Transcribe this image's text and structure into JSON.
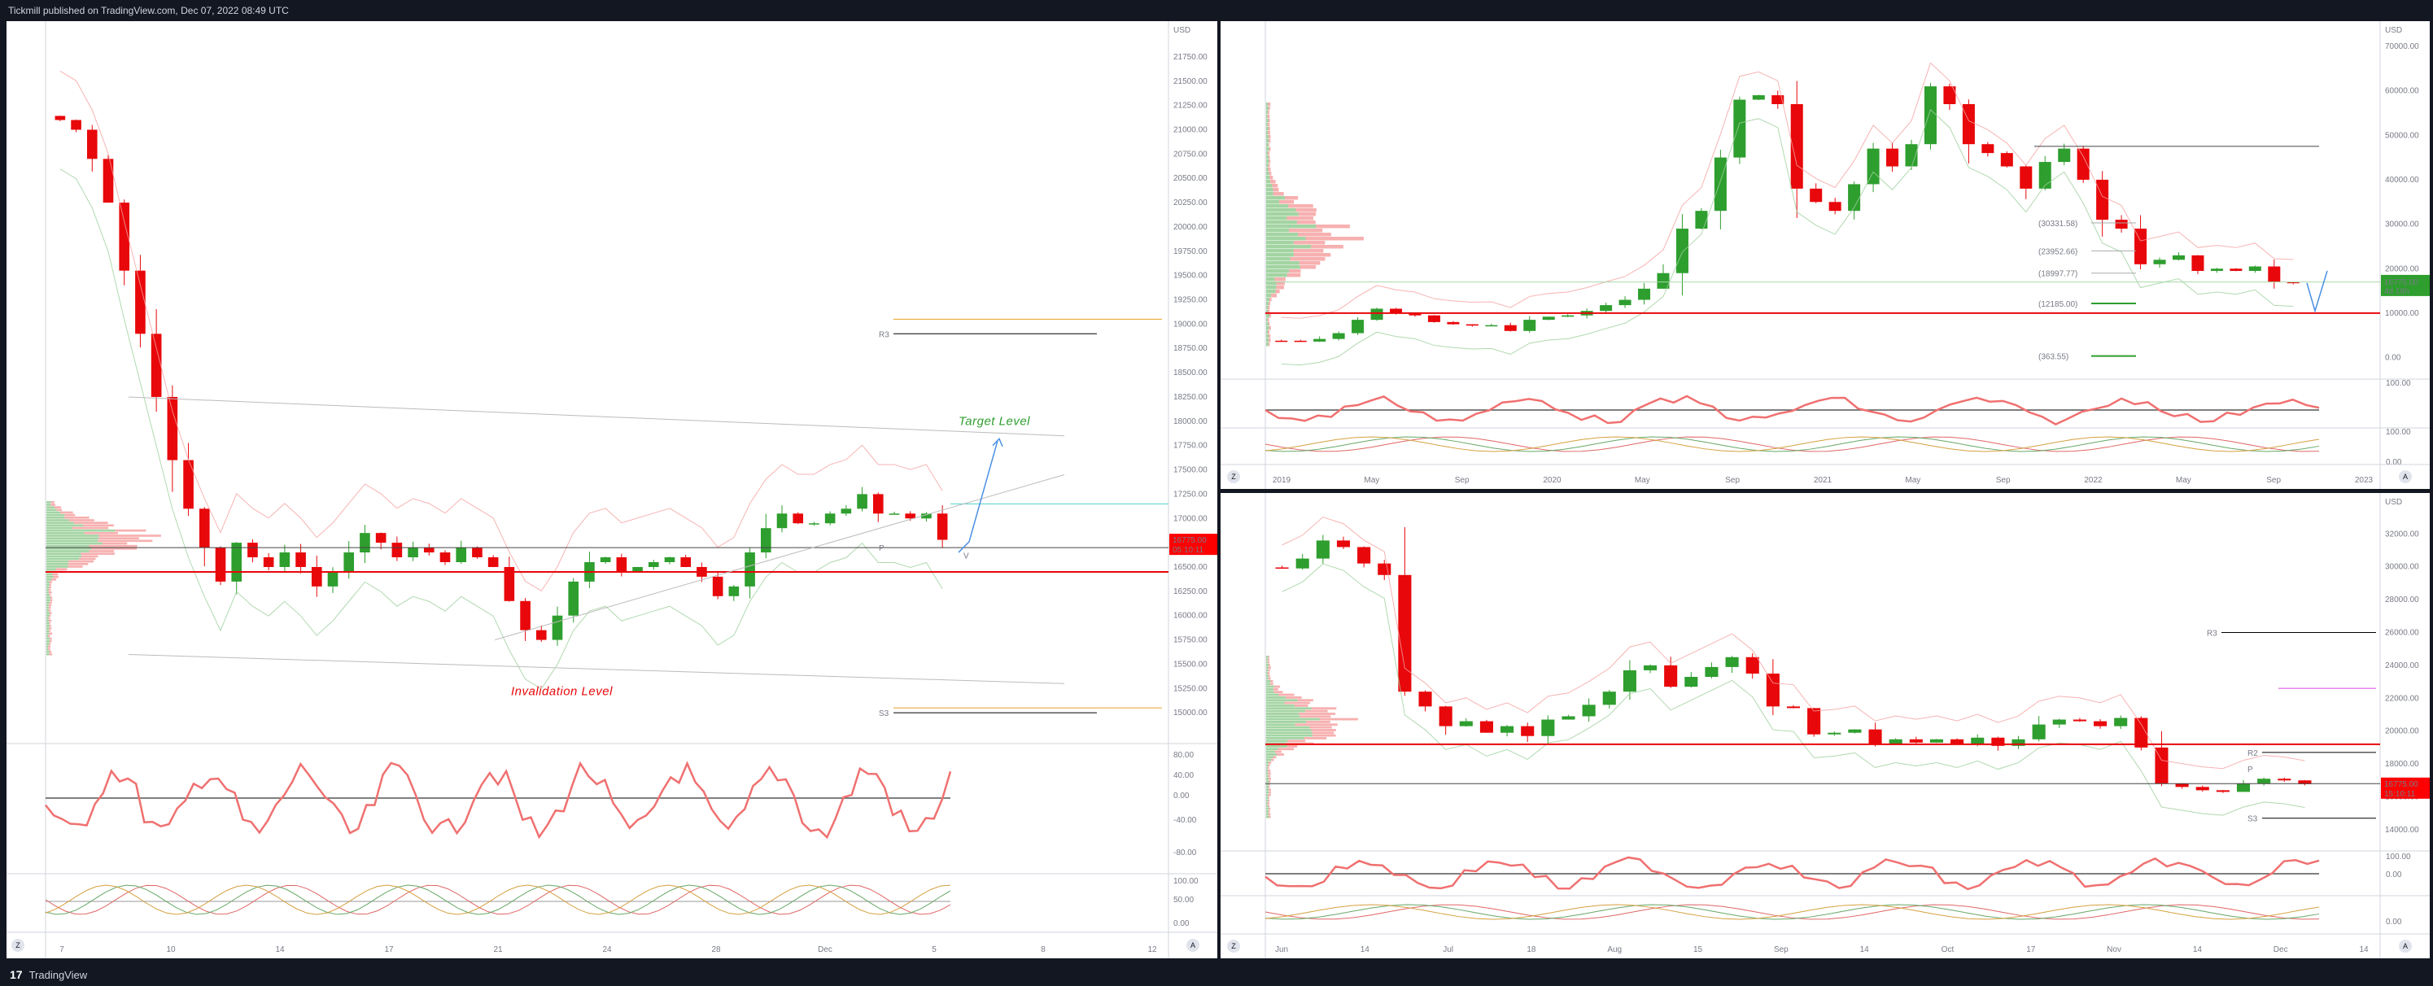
{
  "header": {
    "publish_line": "Tickmill published on TradingView.com, Dec 07, 2022 08:49 UTC"
  },
  "footer": {
    "brand": "TradingView",
    "logo_glyph": "17"
  },
  "colors": {
    "up": "#2e9e2e",
    "down": "#e8070a",
    "osc_up": "#6fbf6f",
    "osc_down": "#f07070",
    "target": "#2e9e2e",
    "invalidation": "#e8070a",
    "price_badge": "#ff0000"
  },
  "chart_data": [
    {
      "id": "left",
      "type": "candlestick",
      "currency": "USD",
      "y_ticks": [
        "21750.00",
        "21500.00",
        "21250.00",
        "21000.00",
        "20750.00",
        "20500.00",
        "20250.00",
        "20000.00",
        "19750.00",
        "19500.00",
        "19250.00",
        "19000.00",
        "18750.00",
        "18500.00",
        "18250.00",
        "18000.00",
        "17750.00",
        "17500.00",
        "17250.00",
        "17000.00",
        "16750.00",
        "16500.00",
        "16250.00",
        "16000.00",
        "15750.00",
        "15500.00",
        "15250.00",
        "15000.00"
      ],
      "ylim": [
        14750,
        21950
      ],
      "x_ticks": [
        "7",
        "10",
        "14",
        "17",
        "21",
        "24",
        "28",
        "Dec",
        "5",
        "8",
        "12"
      ],
      "close_path_values": [
        21100,
        21000,
        20700,
        20250,
        19550,
        18900,
        18250,
        17600,
        17100,
        16700,
        16350,
        16750,
        16600,
        16500,
        16650,
        16500,
        16300,
        16450,
        16650,
        16850,
        16750,
        16600,
        16700,
        16650,
        16550,
        16700,
        16600,
        16500,
        16150,
        15850,
        15750,
        16000,
        16350,
        16550,
        16600,
        16450,
        16500,
        16550,
        16600,
        16500,
        16400,
        16200,
        16300,
        16650,
        16900,
        17050,
        16950,
        16950,
        17050,
        17100,
        17250,
        17050,
        17050,
        17000,
        17050,
        16780
      ],
      "current_price": "16775.00",
      "countdown": "05:10:11",
      "pivots": {
        "R3": "R3",
        "P": "P",
        "S3": "S3"
      },
      "annotations": {
        "target": "Target Level",
        "invalidation": "Invalidation Level",
        "projection_marker": "V"
      },
      "oscillator1": {
        "ticks": [
          "80.00",
          "40.00",
          "0.00",
          "-40.00",
          "-80.00"
        ]
      },
      "oscillator2": {
        "ticks": [
          "100.00",
          "50.00",
          "0.00"
        ]
      }
    },
    {
      "id": "top-right",
      "type": "candlestick",
      "currency": "USD",
      "y_ticks": [
        "70000.00",
        "60000.00",
        "50000.00",
        "40000.00",
        "30000.00",
        "20000.00",
        "10000.00",
        "0.00"
      ],
      "ylim": [
        -3000,
        72000
      ],
      "x_ticks": [
        "2019",
        "May",
        "Sep",
        "2020",
        "May",
        "Sep",
        "2021",
        "May",
        "Sep",
        "2022",
        "May",
        "Sep",
        "2023"
      ],
      "close_path_values": [
        3800,
        3600,
        4200,
        5500,
        8500,
        11000,
        10000,
        9500,
        8000,
        7500,
        7200,
        7300,
        6000,
        8500,
        9200,
        9500,
        10500,
        11800,
        13000,
        15500,
        19000,
        29000,
        33000,
        45000,
        58000,
        59000,
        57000,
        38000,
        35000,
        33000,
        39000,
        47000,
        43000,
        48000,
        61000,
        57000,
        48000,
        46000,
        43000,
        38000,
        44000,
        47000,
        40000,
        31000,
        29000,
        21000,
        22000,
        23000,
        19500,
        20000,
        19500,
        20500,
        17000,
        16800
      ],
      "current_price": "16775.00",
      "countdown": "4d 16h",
      "levels": [
        "(30331.58)",
        "(23952.66)",
        "(18997.77)",
        "(12185.00)",
        "(363.55)"
      ],
      "osc_ticks": [
        "100.00",
        "100.00",
        "0.00"
      ]
    },
    {
      "id": "bottom-right",
      "type": "candlestick",
      "currency": "USD",
      "y_ticks": [
        "32000.00",
        "30000.00",
        "28000.00",
        "26000.00",
        "24000.00",
        "22000.00",
        "20000.00",
        "18000.00",
        "16000.00",
        "14000.00"
      ],
      "ylim": [
        13200,
        33500
      ],
      "x_ticks": [
        "Jun",
        "14",
        "Jul",
        "18",
        "Aug",
        "15",
        "Sep",
        "14",
        "Oct",
        "17",
        "Nov",
        "14",
        "Dec",
        "14"
      ],
      "close_path_values": [
        29900,
        30500,
        31600,
        31200,
        30200,
        29500,
        22400,
        21500,
        20300,
        20600,
        19900,
        20300,
        19700,
        20700,
        20900,
        21600,
        22400,
        23700,
        24000,
        22700,
        23300,
        23900,
        24500,
        23500,
        21500,
        21400,
        19800,
        19900,
        20100,
        19200,
        19500,
        19300,
        19500,
        19200,
        19600,
        19100,
        19500,
        20400,
        20700,
        20600,
        20300,
        20800,
        19000,
        16800,
        16600,
        16400,
        16300,
        16800,
        17100,
        17000,
        16775
      ],
      "current_price": "16775.00",
      "countdown": "15:10:11",
      "pivots": {
        "R3": "R3",
        "R2": "R2",
        "P": "P",
        "S3": "S3"
      },
      "osc_ticks": [
        "100.00",
        "0.00",
        "0.00"
      ]
    }
  ],
  "ui": {
    "zoom_button": "Z",
    "auto_button": "A"
  }
}
